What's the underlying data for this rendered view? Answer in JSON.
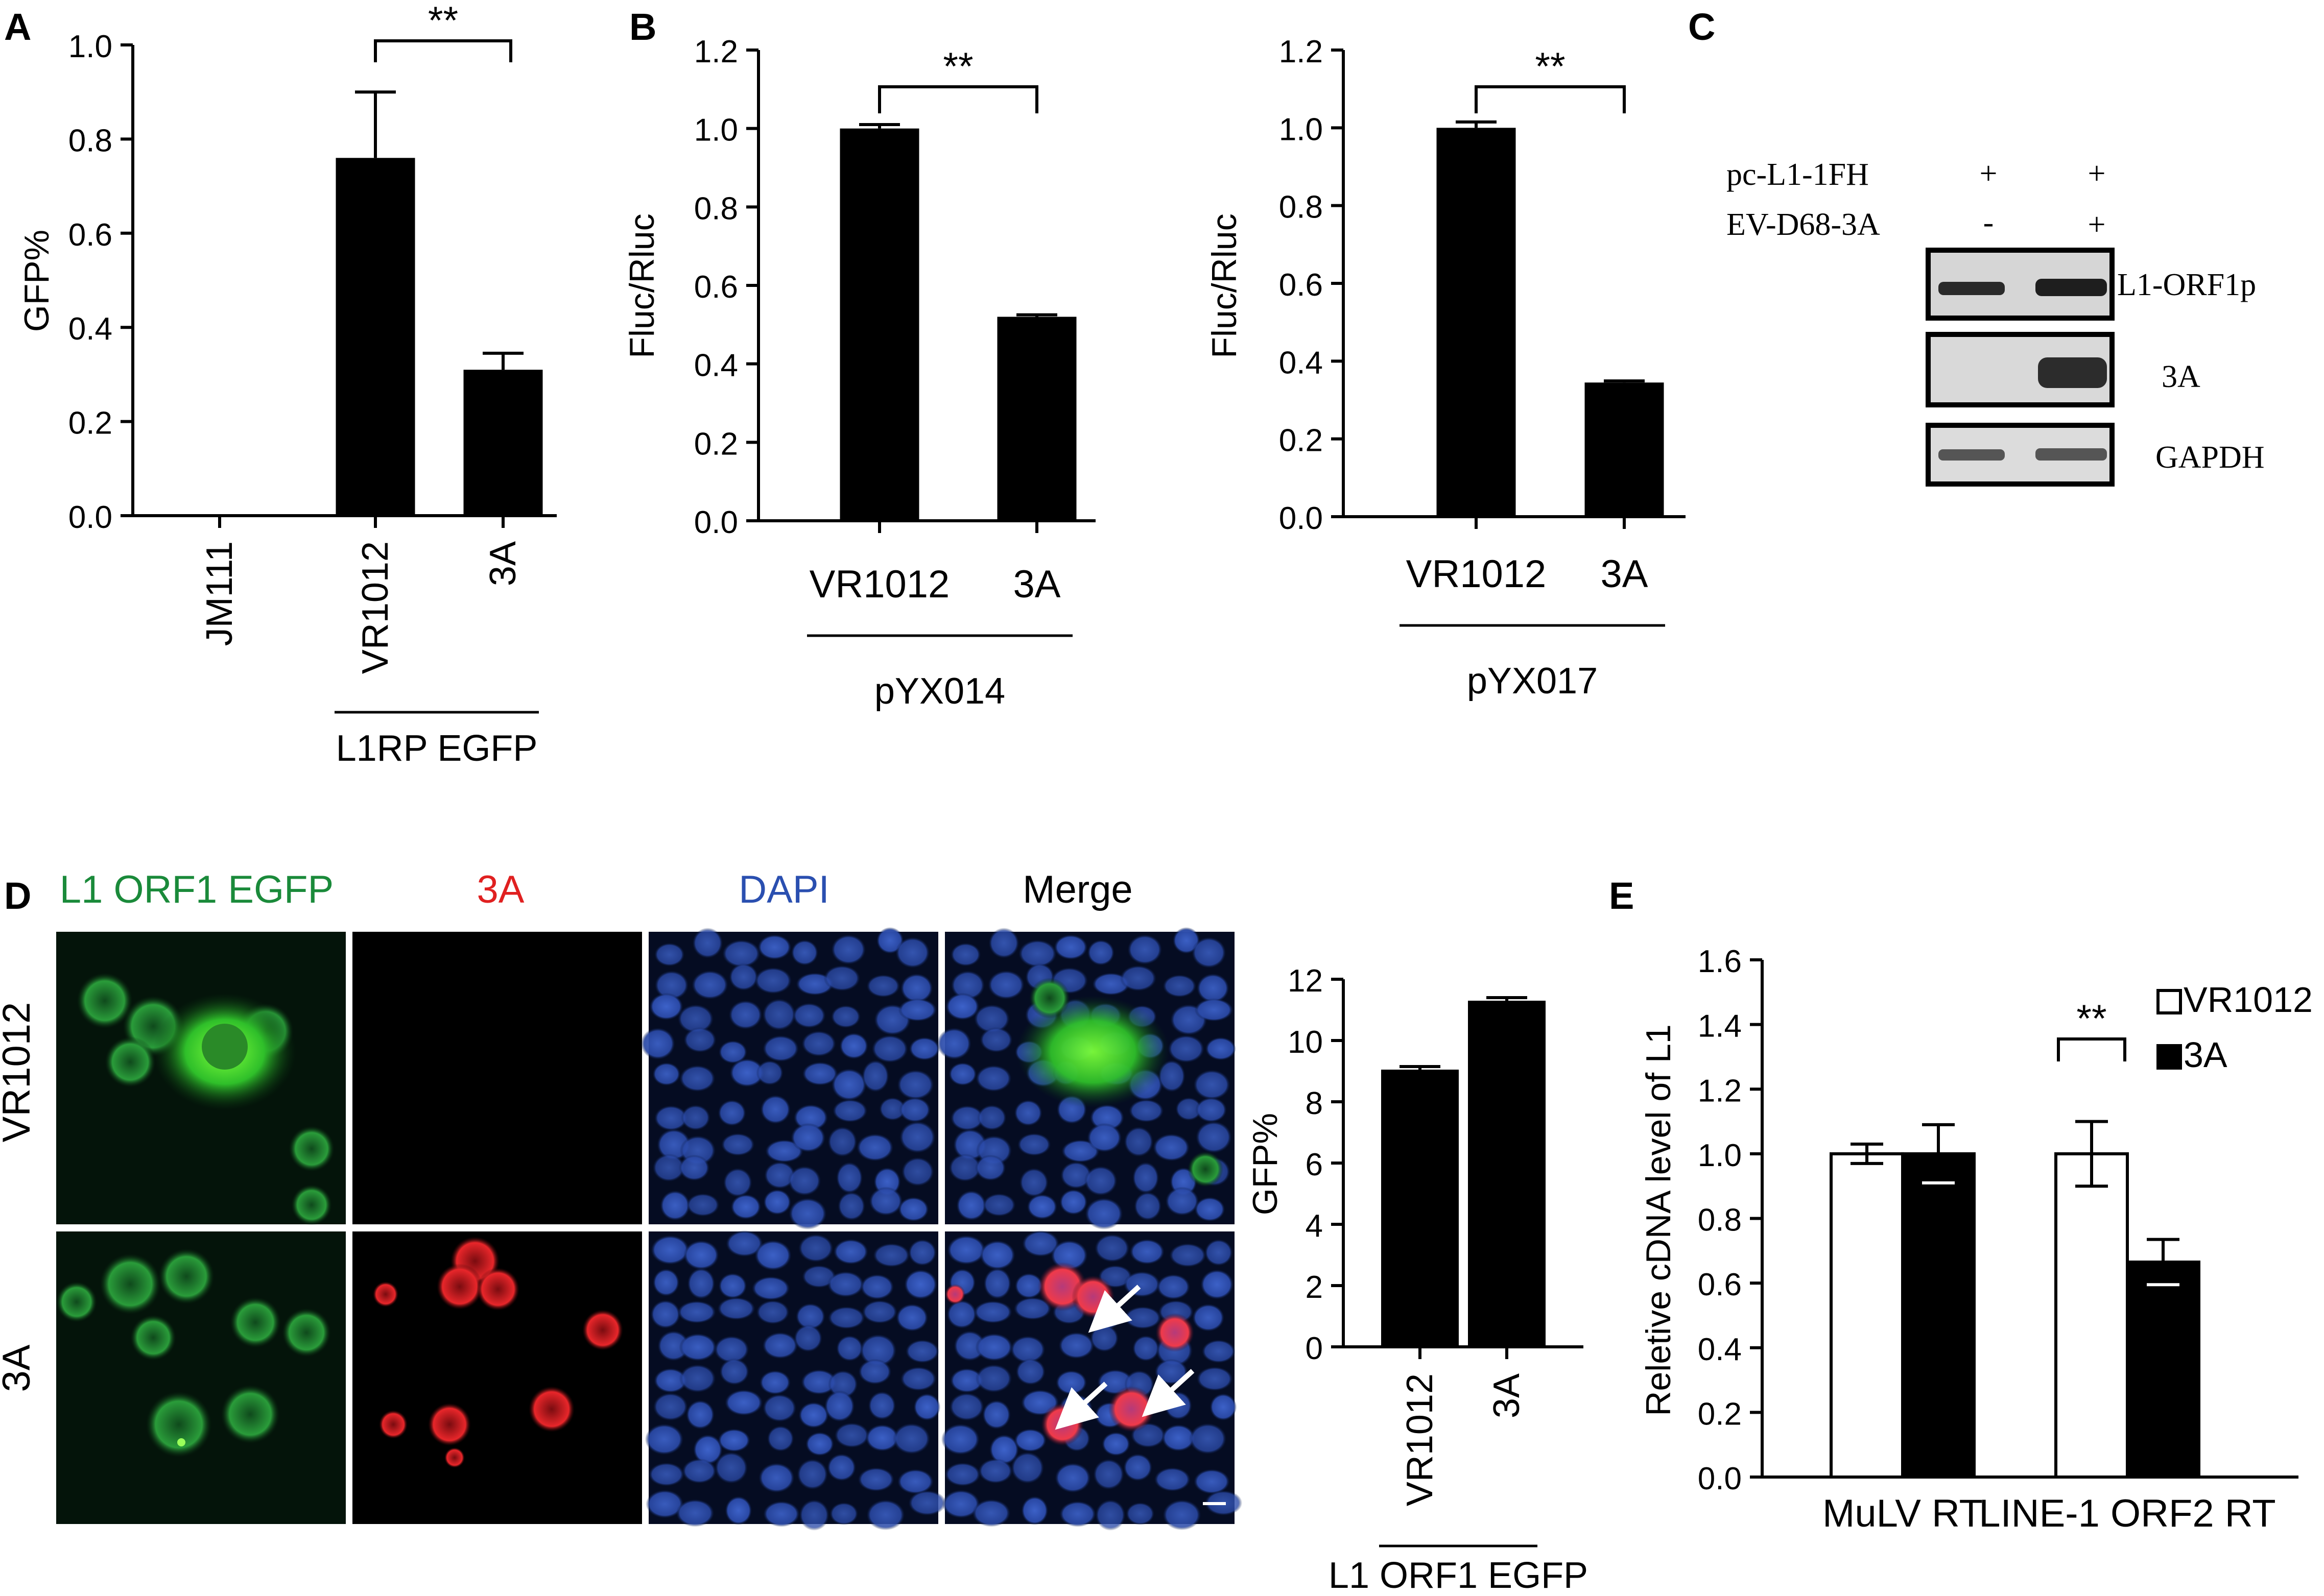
{
  "panel_labels": [
    "A",
    "B",
    "C",
    "D",
    "E"
  ],
  "colors": {
    "bar": "#000000",
    "open_bar": "#ffffff",
    "green": "#1a8a3a",
    "red": "#e02020",
    "blue": "#2a4fb0",
    "arrow": "#ffffff"
  },
  "chart_data": [
    {
      "id": "A",
      "type": "bar",
      "categories": [
        "JM111",
        "VR1012",
        "3A"
      ],
      "values": [
        0.0,
        0.76,
        0.31
      ],
      "errors": [
        0.0,
        0.14,
        0.035
      ],
      "ylabel": "GFP%",
      "ylim": [
        0,
        1.0
      ],
      "yticks": [
        "0.0",
        "0.2",
        "0.4",
        "0.6",
        "0.8",
        "1.0"
      ],
      "group_label": "L1RP EGFP",
      "significance": "**",
      "grid": false
    },
    {
      "id": "B1",
      "type": "bar",
      "categories": [
        "VR1012",
        "3A"
      ],
      "values": [
        1.0,
        0.52
      ],
      "errors": [
        0.01,
        0.005
      ],
      "ylabel": "Fluc/Rluc",
      "ylim": [
        0,
        1.2
      ],
      "yticks": [
        "0.0",
        "0.2",
        "0.4",
        "0.6",
        "0.8",
        "1.0",
        "1.2"
      ],
      "group_label": "pYX014",
      "significance": "**",
      "grid": false
    },
    {
      "id": "B2",
      "type": "bar",
      "categories": [
        "VR1012",
        "3A"
      ],
      "values": [
        1.0,
        0.345
      ],
      "errors": [
        0.015,
        0.004
      ],
      "ylabel": "Fluc/Rluc",
      "ylim": [
        0,
        1.2
      ],
      "yticks": [
        "0.0",
        "0.2",
        "0.4",
        "0.6",
        "0.8",
        "1.0",
        "1.2"
      ],
      "group_label": "pYX017",
      "significance": "**",
      "grid": false
    },
    {
      "id": "D2",
      "type": "bar",
      "categories": [
        "VR1012",
        "3A"
      ],
      "values": [
        9.05,
        11.3
      ],
      "errors": [
        0.1,
        0.1
      ],
      "ylabel": "GFP%",
      "ylim": [
        0,
        12
      ],
      "yticks": [
        "0",
        "2",
        "4",
        "6",
        "8",
        "10",
        "12"
      ],
      "group_label": "L1 ORF1 EGFP",
      "grid": false
    },
    {
      "id": "E",
      "type": "bar",
      "categories": [
        "MuLV RT",
        "LINE-1 ORF2 RT"
      ],
      "series": [
        {
          "name": "VR1012",
          "values": [
            1.0,
            1.0
          ],
          "errors": [
            0.03,
            0.1
          ]
        },
        {
          "name": "3A",
          "values": [
            1.0,
            0.665
          ],
          "errors": [
            0.09,
            0.07
          ]
        }
      ],
      "ylabel": "Reletive cDNA level of L1",
      "ylim": [
        0,
        1.6
      ],
      "yticks": [
        "0.0",
        "0.2",
        "0.4",
        "0.6",
        "0.8",
        "1.0",
        "1.2",
        "1.4",
        "1.6"
      ],
      "significance": "**",
      "legend": "top-right",
      "grid": false
    }
  ],
  "blot": {
    "conditions": [
      {
        "label": "pc-L1-1FH",
        "marks": [
          "+",
          "+"
        ]
      },
      {
        "label": "EV-D68-3A",
        "marks": [
          "-",
          "+"
        ]
      }
    ],
    "bands": [
      "L1-ORF1p",
      "3A",
      "GAPDH"
    ]
  },
  "micro": {
    "columns": [
      "L1 ORF1 EGFP",
      "3A",
      "DAPI",
      "Merge"
    ],
    "rows": [
      "VR1012",
      "3A"
    ]
  }
}
